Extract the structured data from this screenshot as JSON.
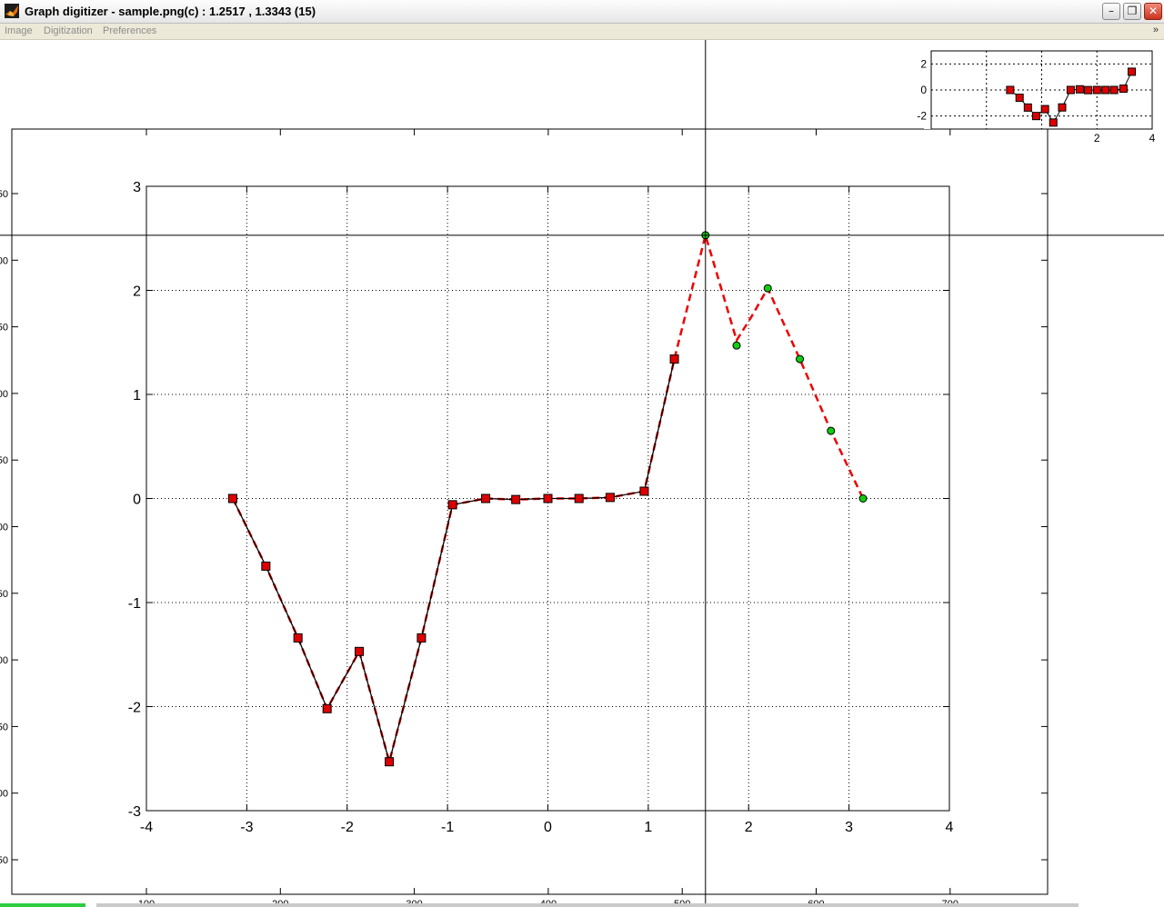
{
  "window": {
    "title": "Graph digitizer - sample.png(c) : 1.2517 , 1.3343 (15)",
    "minimize_glyph": "–",
    "maximize_glyph": "❐",
    "close_glyph": "✕"
  },
  "menu": {
    "items": [
      "Image",
      "Digitization",
      "Preferences"
    ],
    "overflow_glyph": "»"
  },
  "icons": {
    "app": "matlab-app-icon",
    "minimize": "minimize-icon",
    "maximize": "restore-icon",
    "close": "close-icon"
  },
  "colors": {
    "digitized_marker": "#dd0000",
    "interpolated_marker": "#11cc11",
    "interpolation_line": "#ee0000",
    "data_line": "#000000"
  },
  "image_axes": {
    "left_labels": [
      "50",
      "00",
      "50",
      "00",
      "50",
      "00",
      "50",
      "00",
      "50",
      "00",
      "50"
    ],
    "bottom_labels": [
      "100",
      "200",
      "300",
      "400",
      "500",
      "600",
      "700"
    ]
  },
  "chart_data": {
    "type": "line",
    "xlim": [
      -4,
      4
    ],
    "ylim": [
      -3,
      3
    ],
    "x_ticks": [
      "-4",
      "-3",
      "-2",
      "-1",
      "0",
      "1",
      "2",
      "3",
      "4"
    ],
    "y_ticks": [
      "-3",
      "-2",
      "-1",
      "0",
      "1",
      "2",
      "3"
    ],
    "grid": true,
    "series": [
      {
        "style": "black solid line with red square markers",
        "x": [
          -3.14,
          -2.81,
          -2.49,
          -2.2,
          -1.88,
          -1.58,
          -1.26,
          -0.95,
          -0.62,
          -0.32,
          0.0,
          0.31,
          0.62,
          0.96,
          1.26
        ],
        "y": [
          0.0,
          -0.65,
          -1.34,
          -2.02,
          -1.47,
          -2.53,
          -1.34,
          -0.06,
          0.0,
          -0.01,
          0.0,
          0.0,
          0.01,
          0.07,
          1.34
        ]
      },
      {
        "style": "dashed red interpolation line with green circle markers",
        "x": [
          1.57,
          1.88,
          2.19,
          2.51,
          2.82,
          3.14
        ],
        "y": [
          2.53,
          1.47,
          2.02,
          1.34,
          0.65,
          0.0
        ]
      }
    ],
    "interpolation_curve": {
      "x": [
        -3.14,
        -2.81,
        -2.49,
        -2.2,
        -1.88,
        -1.58,
        -1.26,
        -0.95,
        -0.62,
        -0.32,
        0.0,
        0.31,
        0.62,
        0.96,
        1.26,
        1.57,
        1.88,
        2.03,
        2.19,
        2.51,
        2.82,
        3.14
      ],
      "y": [
        0.0,
        -0.65,
        -1.34,
        -2.02,
        -1.47,
        -2.53,
        -1.34,
        -0.06,
        0.0,
        -0.01,
        0.0,
        0.0,
        0.01,
        0.07,
        1.34,
        2.53,
        1.52,
        1.75,
        2.02,
        1.34,
        0.65,
        0.0
      ]
    },
    "crosshair": {
      "x": 1.57,
      "y": 2.53
    },
    "preview": {
      "xlim": [
        -4,
        4
      ],
      "ylim": [
        -3,
        3
      ],
      "x_ticks": [
        "2",
        "4"
      ],
      "y_ticks": [
        "2",
        "0",
        "-2"
      ],
      "points": [
        [
          -1.14,
          0.0
        ],
        [
          -0.8,
          -0.6
        ],
        [
          -0.5,
          -1.35
        ],
        [
          -0.2,
          -2.0
        ],
        [
          0.12,
          -1.47
        ],
        [
          0.42,
          -2.5
        ],
        [
          0.74,
          -1.34
        ],
        [
          1.05,
          0.0
        ],
        [
          1.38,
          0.05
        ],
        [
          1.68,
          -0.01
        ],
        [
          2.0,
          0.0
        ],
        [
          2.31,
          0.0
        ],
        [
          2.62,
          0.0
        ],
        [
          2.96,
          0.1
        ],
        [
          3.26,
          1.4
        ]
      ]
    }
  }
}
